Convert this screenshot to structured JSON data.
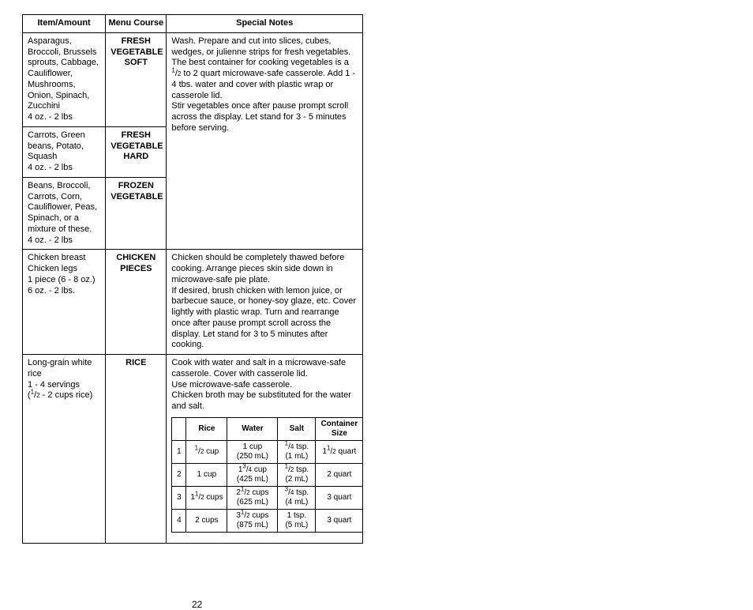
{
  "headers": {
    "item": "Item/Amount",
    "course": "Menu Course",
    "notes": "Special Notes"
  },
  "rows": [
    {
      "item": "Asparagus, Broccoli, Brussels sprouts, Cabbage, Cauliflower, Mushrooms, Onion, Spinach, Zucchini\n4 oz. - 2 lbs",
      "course": "FRESH VEGETABLE SOFT"
    },
    {
      "item": "Carrots, Green beans, Potato, Squash\n4 oz. - 2 lbs",
      "course": "FRESH VEGETABLE HARD"
    },
    {
      "item": "Beans, Broccoli, Carrots, Corn, Cauliflower, Peas, Spinach, or a mixture of these.\n4 oz. - 2 lbs",
      "course": "FROZEN VEGETABLE"
    },
    {
      "item": "Chicken breast\nChicken legs\n1 piece (6 - 8 oz.)\n6 oz. - 2 lbs.",
      "course": "CHICKEN PIECES",
      "notes": "Chicken should be completely thawed before cooking. Arrange pieces skin side down in microwave-safe pie plate.\nIf desired, brush chicken with lemon juice, or barbecue sauce, or honey-soy glaze, etc. Cover lightly with plastic wrap. Turn and rearrange once after pause prompt scroll across the display. Let stand for 3 to 5 minutes after cooking."
    },
    {
      "item_html": "Long-grain white rice<br>1 - 4 servings<br>(<sup>1</sup>/<sub>2</sub> - 2 cups rice)",
      "course": "RICE",
      "notes": "Cook with water and salt in a microwave-safe casserole. Cover with casserole lid.\nUse microwave-safe casserole.\nChicken broth may be substituted for the water and salt."
    }
  ],
  "veg_notes_html": "Wash. Prepare and cut into slices, cubes, wedges, or julienne strips for fresh vegetables. The best container for cooking vegetables is a <sup>1</sup>/<sub>2</sub> to 2 quart microwave-safe casserole. Add 1 - 4 tbs. water and cover with plastic wrap or casserole lid.<br>Stir vegetables once after pause prompt scroll across the display. Let stand for 3 - 5 minutes before serving.",
  "rice_table": {
    "headers": [
      "",
      "Rice",
      "Water",
      "Salt",
      "Container Size"
    ],
    "rows_html": [
      [
        "1",
        "<sup>1</sup>/<sub>2</sub> cup",
        "1 cup<br>(250 mL)",
        "<sup>1</sup>/<sub>4</sub> tsp.<br>(1 mL)",
        "1<sup>1</sup>/<sub>2</sub> quart"
      ],
      [
        "2",
        "1 cup",
        "1<sup>3</sup>/<sub>4</sub> cup<br>(425 mL)",
        "<sup>1</sup>/<sub>2</sub> tsp.<br>(2 mL)",
        "2 quart"
      ],
      [
        "3",
        "1<sup>1</sup>/<sub>2</sub> cups",
        "2<sup>1</sup>/<sub>2</sub> cups<br>(625 mL)",
        "<sup>3</sup>/<sub>4</sub> tsp.<br>(4 mL)",
        "3 quart"
      ],
      [
        "4",
        "2 cups",
        "3<sup>1</sup>/<sub>2</sub> cups<br>(875 mL)",
        "1 tsp.<br>(5 mL)",
        "3 quart"
      ]
    ],
    "col_widths": [
      "18px",
      "52px",
      "64px",
      "48px",
      "60px"
    ]
  },
  "page_number": "22"
}
